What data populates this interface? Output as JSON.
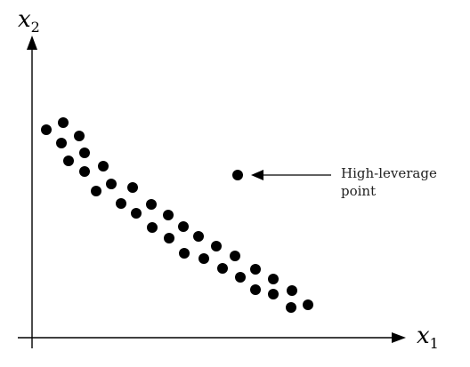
{
  "diagram": {
    "x_axis_label": {
      "base": "x",
      "subscript": "1"
    },
    "y_axis_label": {
      "base": "x",
      "subscript": "2"
    },
    "annotation": {
      "line1": "High-leverage",
      "line2": "point"
    },
    "colors": {
      "ink": "#000000",
      "text": "#222222"
    }
  }
}
